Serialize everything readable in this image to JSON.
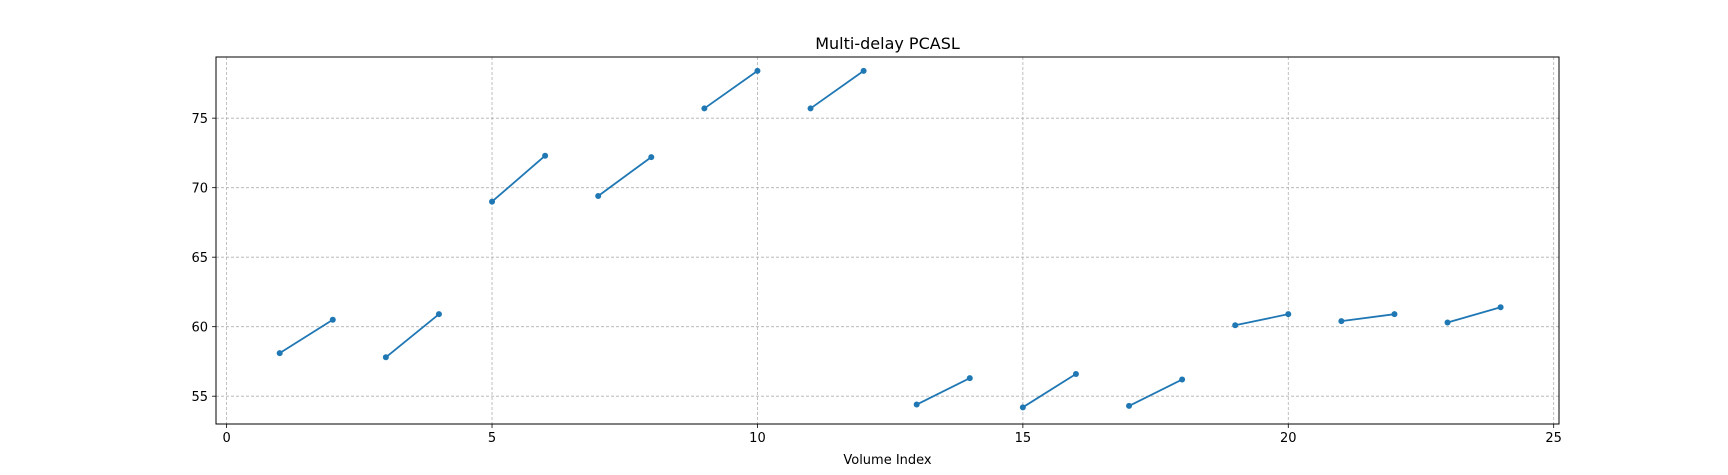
{
  "chart_data": {
    "type": "line",
    "title": "Multi-delay PCASL",
    "xlabel": "Volume Index",
    "ylabel": "",
    "xlim": [
      -0.2,
      25.1
    ],
    "ylim": [
      53.0,
      79.4
    ],
    "xticks": [
      0,
      5,
      10,
      15,
      20,
      25
    ],
    "yticks": [
      55,
      60,
      65,
      70,
      75
    ],
    "grid": true,
    "line_color": "#1f77b4",
    "segments": [
      {
        "x": [
          1,
          2
        ],
        "y": [
          58.1,
          60.5
        ]
      },
      {
        "x": [
          3,
          4
        ],
        "y": [
          57.8,
          60.9
        ]
      },
      {
        "x": [
          5,
          6
        ],
        "y": [
          69.0,
          72.3
        ]
      },
      {
        "x": [
          7,
          8
        ],
        "y": [
          69.4,
          72.2
        ]
      },
      {
        "x": [
          9,
          10
        ],
        "y": [
          75.7,
          78.4
        ]
      },
      {
        "x": [
          11,
          12
        ],
        "y": [
          75.7,
          78.4
        ]
      },
      {
        "x": [
          13,
          14
        ],
        "y": [
          54.4,
          56.3
        ]
      },
      {
        "x": [
          15,
          16
        ],
        "y": [
          54.2,
          56.6
        ]
      },
      {
        "x": [
          17,
          18
        ],
        "y": [
          54.3,
          56.2
        ]
      },
      {
        "x": [
          19,
          20
        ],
        "y": [
          60.1,
          60.9
        ]
      },
      {
        "x": [
          21,
          22
        ],
        "y": [
          60.4,
          60.9
        ]
      },
      {
        "x": [
          23,
          24
        ],
        "y": [
          60.3,
          61.4
        ]
      }
    ]
  }
}
